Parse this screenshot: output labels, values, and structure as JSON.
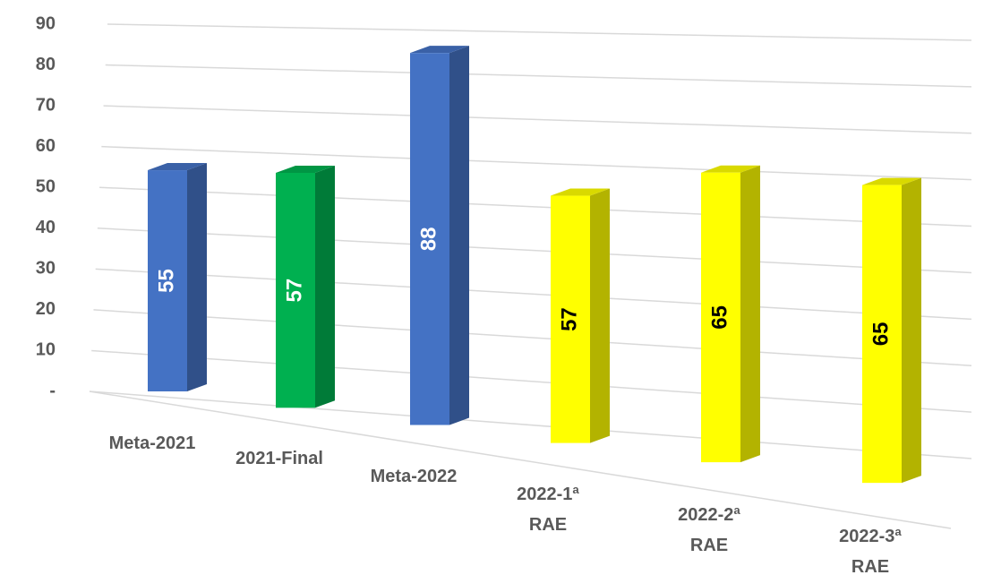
{
  "chart_data": {
    "type": "bar3d",
    "categories": [
      "Meta-2021",
      "2021-Final",
      "Meta-2022",
      "2022-1ª RAE",
      "2022-2ª RAE",
      "2022-3ª RAE"
    ],
    "values": [
      55,
      57,
      88,
      57,
      65,
      65
    ],
    "colors": [
      "#4472c4",
      "#00b050",
      "#4472c4",
      "#ffff00",
      "#ffff00",
      "#ffff00"
    ],
    "ylim": [
      0,
      90
    ],
    "yticks": [
      {
        "value": 0,
        "label": "-"
      },
      10,
      20,
      30,
      40,
      50,
      60,
      70,
      80,
      90
    ],
    "grid": true
  }
}
